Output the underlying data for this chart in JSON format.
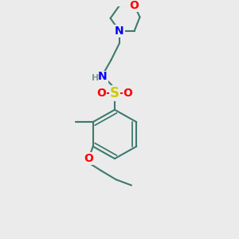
{
  "bg_color": "#ebebeb",
  "bond_color": "#3d7a6e",
  "bond_width": 1.5,
  "atom_colors": {
    "O": "#ff0000",
    "N": "#0000ff",
    "S": "#cccc00",
    "H": "#7a9a90",
    "C": "#3d7a6e"
  },
  "fig_size": [
    3.0,
    3.0
  ],
  "dpi": 100
}
